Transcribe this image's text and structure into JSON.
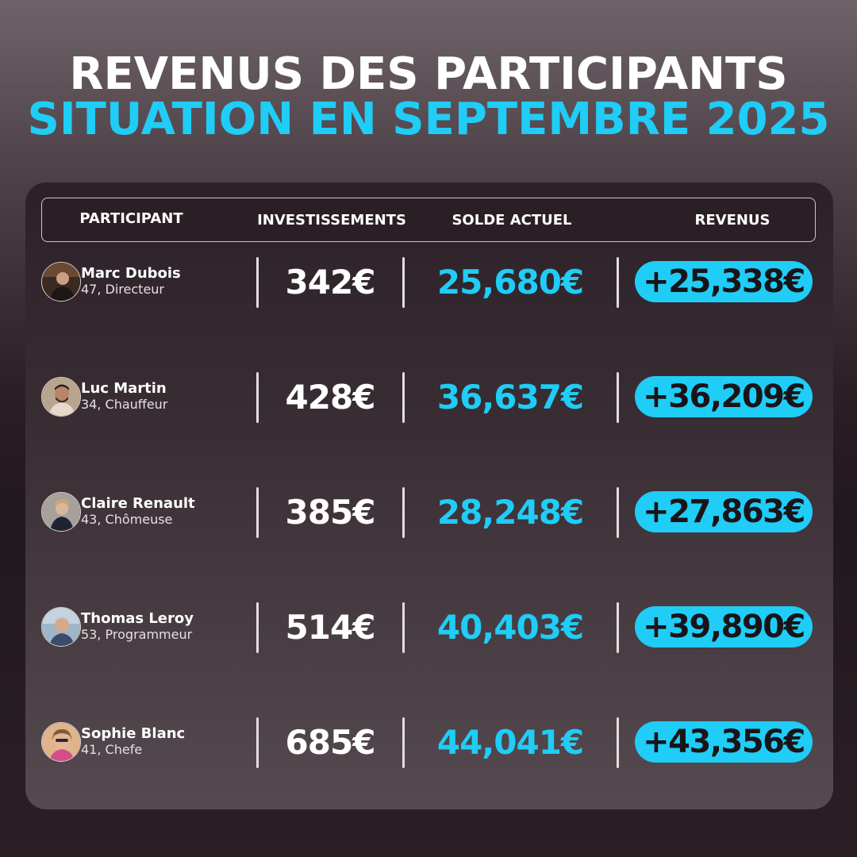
{
  "title": {
    "line1": "REVENUS DES PARTICIPANTS",
    "line2": "SITUATION EN SEPTEMBRE 2025"
  },
  "columns": {
    "participant": "PARTICIPANT",
    "investissements": "INVESTISSEMENTS",
    "solde": "SOLDE ACTUEL",
    "revenus": "REVENUS"
  },
  "colors": {
    "accent": "#1fcdf6",
    "text": "#ffffff",
    "dark": "#1a1418"
  },
  "rows": [
    {
      "name": "Marc Dubois",
      "meta": "47, Directeur",
      "invest": "342€",
      "solde": "25,680€",
      "revenu": "+25,338€",
      "avatar_icon": "person-photo-icon"
    },
    {
      "name": "Luc Martin",
      "meta": "34, Chauffeur",
      "invest": "428€",
      "solde": "36,637€",
      "revenu": "+36,209€",
      "avatar_icon": "person-photo-icon"
    },
    {
      "name": "Claire Renault",
      "meta": "43, Chômeuse",
      "invest": "385€",
      "solde": "28,248€",
      "revenu": "+27,863€",
      "avatar_icon": "person-photo-icon"
    },
    {
      "name": "Thomas Leroy",
      "meta": "53, Programmeur",
      "invest": "514€",
      "solde": "40,403€",
      "revenu": "+39,890€",
      "avatar_icon": "person-photo-icon"
    },
    {
      "name": "Sophie Blanc",
      "meta": "41, Chefe",
      "invest": "685€",
      "solde": "44,041€",
      "revenu": "+43,356€",
      "avatar_icon": "person-photo-icon"
    }
  ]
}
